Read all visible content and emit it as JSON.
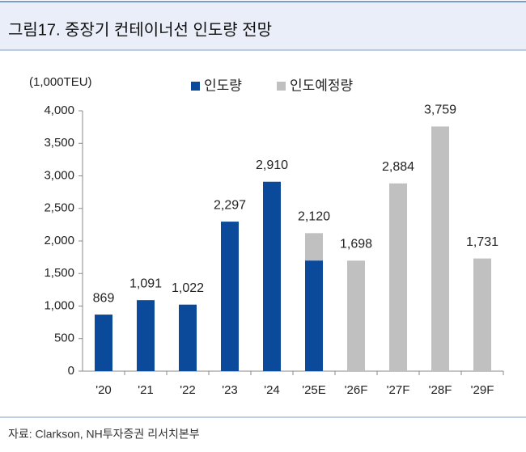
{
  "chart_data": {
    "type": "bar",
    "stacked": true,
    "title": "그림17. 중장기 컨테이너선 인도량 전망",
    "y_label": "(1,000TEU)",
    "source": "자료: Clarkson, NH투자증권 리서치본부",
    "categories": [
      "'20",
      "'21",
      "'22",
      "'23",
      "'24",
      "'25E",
      "'26F",
      "'27F",
      "'28F",
      "'29F"
    ],
    "series": [
      {
        "name": "인도량",
        "color": "#0b4a9b",
        "values": [
          869,
          1091,
          1022,
          2297,
          2910,
          1700,
          null,
          null,
          null,
          null
        ]
      },
      {
        "name": "인도예정량",
        "color": "#c0c0c0",
        "values": [
          null,
          null,
          null,
          null,
          null,
          420,
          1698,
          2884,
          3759,
          1731
        ]
      }
    ],
    "totals": [
      869,
      1091,
      1022,
      2297,
      2910,
      2120,
      1698,
      2884,
      3759,
      1731
    ],
    "total_labels": [
      "869",
      "1,091",
      "1,022",
      "2,297",
      "2,910",
      "2,120",
      "1,698",
      "2,884",
      "3,759",
      "1,731"
    ],
    "ylim": [
      0,
      4000
    ],
    "yticks": [
      0,
      500,
      {
        "value": 1000,
        "label": "1,000"
      },
      {
        "value": 1500,
        "label": "1,500"
      },
      {
        "value": 2000,
        "label": "2,000"
      },
      {
        "value": 2500,
        "label": "2,500"
      },
      {
        "value": 3000,
        "label": "3,000"
      },
      {
        "value": 3500,
        "label": "3,500"
      },
      {
        "value": 4000,
        "label": "4,000"
      }
    ],
    "grid": false
  }
}
